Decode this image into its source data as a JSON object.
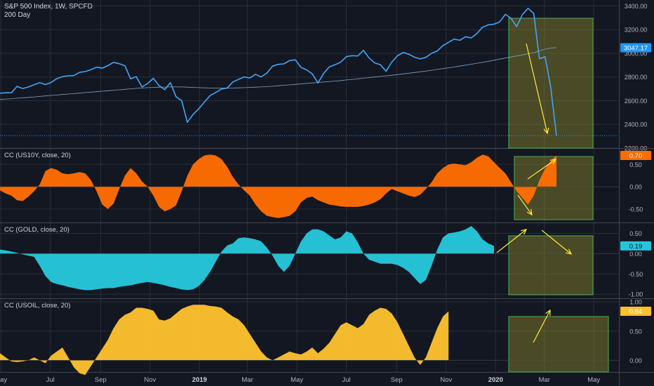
{
  "header": {
    "symbol": "S&P 500 Index, 1W, SPCFD",
    "ma_label": "200 Day"
  },
  "panes": [
    {
      "id": "price",
      "label": "",
      "last_value": "3047.17",
      "last_color": "#2196f3"
    },
    {
      "id": "us10y",
      "label": "CC (US10Y, close, 20)",
      "last_value": "0.70",
      "last_color": "#ff6d00"
    },
    {
      "id": "gold",
      "label": "CC (GOLD, close, 20)",
      "last_value": "0.19",
      "last_color": "#26c6da"
    },
    {
      "id": "usoil",
      "label": "CC (USOIL, close, 20)",
      "last_value": "0.84",
      "last_color": "#fbc02d"
    }
  ],
  "colors": {
    "background": "#131722",
    "grid": "#2a2e39",
    "text": "#b2b5be",
    "price_line": "#42a5f5",
    "ma_line": "#7fa3c4",
    "us10y_fill": "#ff6d00",
    "gold_fill": "#26c6da",
    "usoil_fill": "#fbc02d",
    "box_stroke": "#4caf50",
    "box_fill": "#8d8a2c",
    "arrow": "#ffeb3b"
  },
  "chart_data": [
    {
      "type": "line",
      "name": "price",
      "x": [
        "2018-04-30",
        "2018-05-07",
        "2018-05-14",
        "2018-05-21",
        "2018-05-28",
        "2018-06-04",
        "2018-06-11",
        "2018-06-18",
        "2018-06-25",
        "2018-07-02",
        "2018-07-09",
        "2018-07-16",
        "2018-07-23",
        "2018-07-30",
        "2018-08-06",
        "2018-08-13",
        "2018-08-20",
        "2018-08-27",
        "2018-09-03",
        "2018-09-10",
        "2018-09-17",
        "2018-09-24",
        "2018-10-01",
        "2018-10-08",
        "2018-10-15",
        "2018-10-22",
        "2018-10-29",
        "2018-11-05",
        "2018-11-12",
        "2018-11-19",
        "2018-11-26",
        "2018-12-03",
        "2018-12-10",
        "2018-12-17",
        "2018-12-24",
        "2018-12-31",
        "2019-01-07",
        "2019-01-14",
        "2019-01-21",
        "2019-01-28",
        "2019-02-04",
        "2019-02-11",
        "2019-02-18",
        "2019-02-25",
        "2019-03-04",
        "2019-03-11",
        "2019-03-18",
        "2019-03-25",
        "2019-04-01",
        "2019-04-08",
        "2019-04-15",
        "2019-04-22",
        "2019-04-29",
        "2019-05-06",
        "2019-05-13",
        "2019-05-20",
        "2019-05-27",
        "2019-06-03",
        "2019-06-10",
        "2019-06-17",
        "2019-06-24",
        "2019-07-01",
        "2019-07-08",
        "2019-07-15",
        "2019-07-22",
        "2019-07-29",
        "2019-08-05",
        "2019-08-12",
        "2019-08-19",
        "2019-08-26",
        "2019-09-02",
        "2019-09-09",
        "2019-09-16",
        "2019-09-23",
        "2019-09-30",
        "2019-10-07",
        "2019-10-14",
        "2019-10-21",
        "2019-10-28",
        "2019-11-04",
        "2019-11-11",
        "2019-11-18",
        "2019-11-25",
        "2019-12-02",
        "2019-12-09",
        "2019-12-16",
        "2019-12-23",
        "2019-12-30",
        "2020-01-06",
        "2020-01-13",
        "2020-01-20",
        "2020-01-27",
        "2020-02-03",
        "2020-02-10",
        "2020-02-17",
        "2020-02-24",
        "2020-03-02",
        "2020-03-09",
        "2020-03-16"
      ],
      "series": [
        {
          "values": [
            2663,
            2667,
            2667,
            2721,
            2703,
            2716,
            2735,
            2752,
            2736,
            2754,
            2786,
            2803,
            2810,
            2812,
            2839,
            2846,
            2861,
            2883,
            2875,
            2896,
            2924,
            2912,
            2895,
            2785,
            2803,
            2716,
            2745,
            2789,
            2727,
            2693,
            2752,
            2634,
            2600,
            2418,
            2484,
            2532,
            2588,
            2643,
            2670,
            2699,
            2707,
            2758,
            2780,
            2801,
            2792,
            2823,
            2801,
            2833,
            2892,
            2907,
            2911,
            2939,
            2945,
            2881,
            2860,
            2827,
            2750,
            2830,
            2886,
            2904,
            2925,
            2972,
            2980,
            2977,
            3025,
            2960,
            2919,
            2904,
            2848,
            2926,
            2979,
            3007,
            2992,
            2968,
            2953,
            2966,
            3000,
            3020,
            3065,
            3093,
            3120,
            3110,
            3140,
            3130,
            3168,
            3221,
            3240,
            3246,
            3265,
            3329,
            3295,
            3225,
            3327,
            3380,
            3337,
            2954,
            2972,
            2711,
            2305
          ]
        },
        {
          "name": "200 Day",
          "values": [
            2610,
            2614,
            2617,
            2621,
            2625,
            2628,
            2632,
            2636,
            2640,
            2644,
            2648,
            2652,
            2656,
            2660,
            2664,
            2668,
            2672,
            2676,
            2680,
            2684,
            2688,
            2692,
            2696,
            2700,
            2704,
            2707,
            2710,
            2712,
            2714,
            2715,
            2716,
            2716,
            2716,
            2714,
            2712,
            2710,
            2708,
            2707,
            2706,
            2706,
            2706,
            2707,
            2708,
            2710,
            2712,
            2714,
            2716,
            2719,
            2722,
            2726,
            2730,
            2734,
            2738,
            2742,
            2746,
            2750,
            2754,
            2758,
            2762,
            2766,
            2770,
            2775,
            2780,
            2785,
            2790,
            2795,
            2800,
            2805,
            2810,
            2815,
            2820,
            2826,
            2832,
            2838,
            2844,
            2850,
            2857,
            2864,
            2871,
            2878,
            2885,
            2892,
            2900,
            2908,
            2916,
            2924,
            2933,
            2942,
            2951,
            2960,
            2969,
            2978,
            2987,
            2996,
            3005,
            3020,
            3035,
            3045,
            3047
          ]
        }
      ],
      "ylim": [
        2200,
        3450
      ],
      "yticks": [
        "2200.00",
        "2400.00",
        "2600.00",
        "2800.00",
        "3000.00",
        "3200.00",
        "3400.00"
      ]
    },
    {
      "type": "area",
      "name": "us10y",
      "x_start": "2018-04-30",
      "values": [
        -0.08,
        -0.15,
        -0.2,
        -0.3,
        -0.32,
        -0.22,
        -0.1,
        0.05,
        0.35,
        0.42,
        0.38,
        0.3,
        0.28,
        0.3,
        0.33,
        0.3,
        0.15,
        -0.1,
        -0.4,
        -0.5,
        -0.38,
        -0.05,
        0.25,
        0.42,
        0.3,
        0.12,
        0.0,
        -0.2,
        -0.45,
        -0.55,
        -0.5,
        -0.42,
        -0.1,
        0.25,
        0.5,
        0.62,
        0.7,
        0.72,
        0.7,
        0.62,
        0.45,
        0.22,
        0.05,
        -0.08,
        -0.2,
        -0.4,
        -0.55,
        -0.65,
        -0.68,
        -0.7,
        -0.68,
        -0.65,
        -0.55,
        -0.35,
        -0.25,
        -0.22,
        -0.3,
        -0.35,
        -0.4,
        -0.42,
        -0.44,
        -0.45,
        -0.45,
        -0.45,
        -0.43,
        -0.4,
        -0.35,
        -0.28,
        -0.15,
        -0.05,
        -0.1,
        -0.15,
        -0.2,
        -0.23,
        -0.18,
        -0.05,
        0.1,
        0.3,
        0.42,
        0.5,
        0.52,
        0.5,
        0.48,
        0.55,
        0.65,
        0.72,
        0.68,
        0.55,
        0.42,
        0.3,
        0.1,
        -0.1,
        -0.25,
        -0.4,
        -0.2,
        0.15,
        0.4,
        0.58,
        0.7
      ],
      "ylim": [
        -0.8,
        0.85
      ],
      "yticks": [
        "-0.50",
        "0.00",
        "0.50"
      ]
    },
    {
      "type": "area",
      "name": "gold",
      "x_start": "2018-04-30",
      "values": [
        0.1,
        0.08,
        0.05,
        0.02,
        -0.02,
        -0.05,
        -0.08,
        -0.3,
        -0.55,
        -0.7,
        -0.75,
        -0.78,
        -0.82,
        -0.85,
        -0.88,
        -0.9,
        -0.9,
        -0.88,
        -0.86,
        -0.85,
        -0.85,
        -0.82,
        -0.8,
        -0.78,
        -0.75,
        -0.72,
        -0.7,
        -0.72,
        -0.75,
        -0.78,
        -0.82,
        -0.85,
        -0.88,
        -0.9,
        -0.88,
        -0.8,
        -0.65,
        -0.45,
        -0.2,
        0.05,
        0.2,
        0.25,
        0.38,
        0.4,
        0.38,
        0.35,
        0.3,
        0.15,
        -0.05,
        -0.3,
        -0.45,
        -0.3,
        0.0,
        0.3,
        0.5,
        0.6,
        0.6,
        0.55,
        0.45,
        0.35,
        0.4,
        0.55,
        0.5,
        0.28,
        0.0,
        -0.15,
        -0.2,
        -0.25,
        -0.25,
        -0.25,
        -0.28,
        -0.35,
        -0.45,
        -0.6,
        -0.75,
        -0.65,
        -0.3,
        0.1,
        0.4,
        0.5,
        0.52,
        0.55,
        0.6,
        0.68,
        0.55,
        0.35,
        0.25,
        0.19
      ],
      "ylim": [
        -1.1,
        0.75
      ],
      "yticks": [
        "-1.00",
        "-0.50",
        "0.00",
        "0.50"
      ]
    },
    {
      "type": "area",
      "name": "usoil",
      "x_start": "2018-04-30",
      "values": [
        0.12,
        0.05,
        -0.02,
        -0.03,
        -0.02,
        0.0,
        0.05,
        0.0,
        -0.05,
        0.08,
        0.15,
        0.22,
        0.05,
        -0.12,
        -0.22,
        -0.25,
        -0.1,
        0.05,
        0.2,
        0.35,
        0.55,
        0.7,
        0.78,
        0.82,
        0.9,
        0.9,
        0.88,
        0.85,
        0.7,
        0.68,
        0.72,
        0.8,
        0.88,
        0.92,
        0.95,
        0.95,
        0.95,
        0.93,
        0.92,
        0.9,
        0.82,
        0.75,
        0.7,
        0.6,
        0.45,
        0.3,
        0.15,
        0.05,
        0.0,
        0.05,
        0.1,
        0.15,
        0.12,
        0.1,
        0.15,
        0.22,
        0.12,
        0.2,
        0.3,
        0.45,
        0.6,
        0.65,
        0.6,
        0.55,
        0.62,
        0.78,
        0.85,
        0.9,
        0.88,
        0.8,
        0.65,
        0.45,
        0.25,
        0.05,
        -0.08,
        0.05,
        0.3,
        0.55,
        0.75,
        0.84
      ],
      "ylim": [
        -0.2,
        1.05
      ],
      "yticks": [
        "0.00",
        "0.50",
        "1.00"
      ]
    }
  ],
  "x_axis": {
    "ticks": [
      {
        "label": "May",
        "date": "2018-05-01",
        "bold": false
      },
      {
        "label": "Jul",
        "date": "2018-07-01",
        "bold": false
      },
      {
        "label": "Sep",
        "date": "2018-09-01",
        "bold": false
      },
      {
        "label": "Nov",
        "date": "2018-11-01",
        "bold": false
      },
      {
        "label": "2019",
        "date": "2019-01-01",
        "bold": true
      },
      {
        "label": "Mar",
        "date": "2019-03-01",
        "bold": false
      },
      {
        "label": "May",
        "date": "2019-05-01",
        "bold": false
      },
      {
        "label": "Jul",
        "date": "2019-07-01",
        "bold": false
      },
      {
        "label": "Sep",
        "date": "2019-09-01",
        "bold": false
      },
      {
        "label": "Nov",
        "date": "2019-11-01",
        "bold": false
      },
      {
        "label": "2020",
        "date": "2020-01-01",
        "bold": true
      },
      {
        "label": "Mar",
        "date": "2020-03-01",
        "bold": false
      },
      {
        "label": "May",
        "date": "2020-05-01",
        "bold": false
      }
    ]
  }
}
